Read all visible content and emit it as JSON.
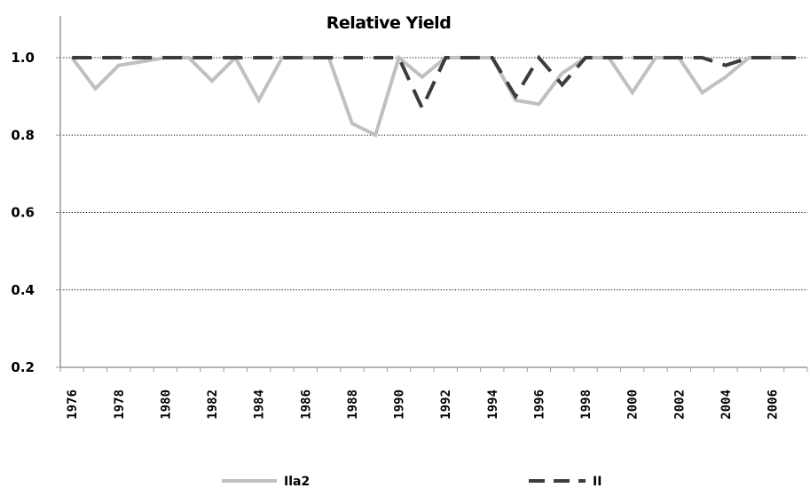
{
  "chart_data": {
    "type": "line",
    "title": "Relative Yield",
    "xlabel": "",
    "ylabel": "",
    "ylim": [
      0.2,
      1.1
    ],
    "yticks": [
      "0.2",
      "0.4",
      "0.6",
      "0.8",
      "1.0"
    ],
    "xticks": [
      "1976",
      "1978",
      "1980",
      "1982",
      "1984",
      "1986",
      "1988",
      "1990",
      "1992",
      "1994",
      "1996",
      "1998",
      "2000",
      "2002",
      "2004",
      "2006"
    ],
    "grid": "horizontal dotted",
    "legend_position": "bottom",
    "x": [
      1976,
      1977,
      1978,
      1979,
      1980,
      1981,
      1982,
      1983,
      1984,
      1985,
      1986,
      1987,
      1988,
      1989,
      1990,
      1991,
      1992,
      1993,
      1994,
      1995,
      1996,
      1997,
      1998,
      1999,
      2000,
      2001,
      2002,
      2003,
      2004,
      2005,
      2006,
      2007
    ],
    "series": [
      {
        "name": "Ila2",
        "color": "#c0c0c0",
        "style": "solid",
        "values": [
          1.0,
          0.92,
          0.98,
          0.99,
          1.0,
          1.0,
          0.94,
          1.0,
          0.89,
          1.0,
          1.0,
          1.0,
          0.83,
          0.8,
          1.0,
          0.95,
          1.0,
          1.0,
          1.0,
          0.89,
          0.88,
          0.96,
          1.0,
          1.0,
          0.91,
          1.0,
          1.0,
          0.91,
          0.95,
          1.0,
          1.0,
          1.0
        ]
      },
      {
        "name": "II",
        "color": "#3c3c3c",
        "style": "dashed",
        "values": [
          1.0,
          1.0,
          1.0,
          1.0,
          1.0,
          1.0,
          1.0,
          1.0,
          1.0,
          1.0,
          1.0,
          1.0,
          1.0,
          1.0,
          1.0,
          0.87,
          1.0,
          1.0,
          1.0,
          0.9,
          1.0,
          0.93,
          1.0,
          1.0,
          1.0,
          1.0,
          1.0,
          1.0,
          0.98,
          1.0,
          1.0,
          1.0
        ]
      }
    ]
  }
}
